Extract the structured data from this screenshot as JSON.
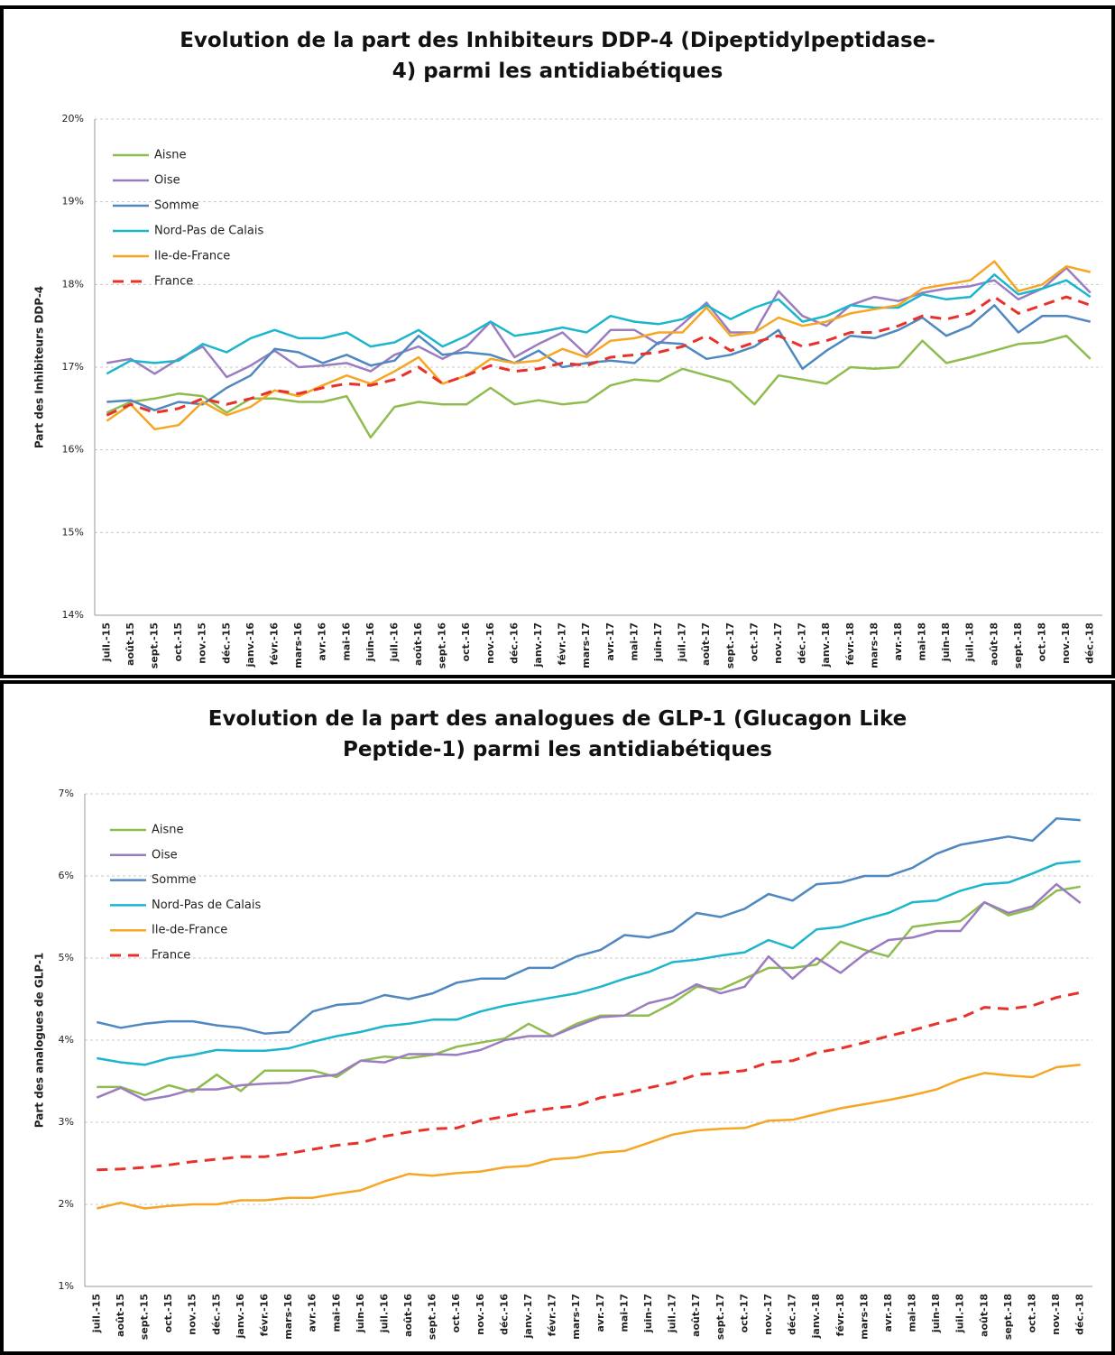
{
  "chart_data": [
    {
      "type": "line",
      "title": "Evolution de la part des Inhibiteurs DDP-4 (Dipeptidylpeptidase-4) parmi les antidiabétiques",
      "y_label": "Part des Inhibiteurs DDP-4",
      "categories": [
        "juil.-15",
        "août-15",
        "sept.-15",
        "oct.-15",
        "nov.-15",
        "déc.-15",
        "janv.-16",
        "févr.-16",
        "mars-16",
        "avr.-16",
        "mai-16",
        "juin-16",
        "juil.-16",
        "août-16",
        "sept.-16",
        "oct.-16",
        "nov.-16",
        "déc.-16",
        "janv.-17",
        "févr.-17",
        "mars-17",
        "avr.-17",
        "mai-17",
        "juin-17",
        "juil.-17",
        "août-17",
        "sept.-17",
        "oct.-17",
        "nov.-17",
        "déc.-17",
        "janv.-18",
        "févr.-18",
        "mars-18",
        "avr.-18",
        "mai-18",
        "juin-18",
        "juil.-18",
        "août-18",
        "sept.-18",
        "oct.-18",
        "nov.-18",
        "déc.-18"
      ],
      "ylim": [
        14,
        20
      ],
      "yticks": [
        {
          "value": 14,
          "label": "14%"
        },
        {
          "value": 15,
          "label": "15%"
        },
        {
          "value": 16,
          "label": "16%"
        },
        {
          "value": 17,
          "label": "17%"
        },
        {
          "value": 18,
          "label": "18%"
        },
        {
          "value": 19,
          "label": "19%"
        },
        {
          "value": 20,
          "label": "20%"
        }
      ],
      "grid": true,
      "legend": "upper left",
      "series": [
        {
          "name": "Aisne",
          "color": "#8fbc4e",
          "values": [
            16.45,
            16.58,
            16.62,
            16.68,
            16.65,
            16.45,
            16.62,
            16.62,
            16.58,
            16.58,
            16.65,
            16.15,
            16.52,
            16.58,
            16.55,
            16.55,
            16.75,
            16.55,
            16.6,
            16.55,
            16.58,
            16.78,
            16.85,
            16.83,
            16.98,
            16.9,
            16.82,
            16.55,
            16.9,
            16.85,
            16.8,
            17.0,
            16.98,
            17.0,
            17.32,
            17.05,
            17.12,
            17.2,
            17.28,
            17.3,
            17.38,
            17.1
          ]
        },
        {
          "name": "Oise",
          "color": "#9b7cc0",
          "values": [
            17.05,
            17.1,
            16.92,
            17.1,
            17.25,
            16.88,
            17.02,
            17.2,
            17.0,
            17.02,
            17.05,
            16.95,
            17.15,
            17.25,
            17.1,
            17.25,
            17.55,
            17.12,
            17.28,
            17.42,
            17.15,
            17.45,
            17.45,
            17.28,
            17.52,
            17.78,
            17.42,
            17.42,
            17.92,
            17.62,
            17.5,
            17.75,
            17.85,
            17.8,
            17.9,
            17.95,
            17.98,
            18.05,
            17.82,
            17.95,
            18.2,
            17.9
          ]
        },
        {
          "name": "Somme",
          "color": "#4f87c0",
          "values": [
            16.58,
            16.6,
            16.48,
            16.58,
            16.55,
            16.75,
            16.9,
            17.22,
            17.18,
            17.05,
            17.15,
            17.02,
            17.08,
            17.38,
            17.15,
            17.18,
            17.15,
            17.05,
            17.2,
            17.0,
            17.05,
            17.08,
            17.05,
            17.3,
            17.28,
            17.1,
            17.15,
            17.25,
            17.45,
            16.98,
            17.2,
            17.38,
            17.35,
            17.45,
            17.6,
            17.38,
            17.5,
            17.75,
            17.42,
            17.62,
            17.62,
            17.55
          ]
        },
        {
          "name": "Nord-Pas de Calais",
          "color": "#1bb6cc",
          "values": [
            16.92,
            17.08,
            17.05,
            17.08,
            17.28,
            17.18,
            17.35,
            17.45,
            17.35,
            17.35,
            17.42,
            17.25,
            17.3,
            17.45,
            17.25,
            17.38,
            17.55,
            17.38,
            17.42,
            17.48,
            17.42,
            17.62,
            17.55,
            17.52,
            17.58,
            17.75,
            17.58,
            17.72,
            17.82,
            17.55,
            17.62,
            17.75,
            17.72,
            17.72,
            17.88,
            17.82,
            17.85,
            18.12,
            17.88,
            17.95,
            18.05,
            17.85
          ]
        },
        {
          "name": "Ile-de-France",
          "color": "#f5a623",
          "values": [
            16.35,
            16.55,
            16.25,
            16.3,
            16.58,
            16.42,
            16.52,
            16.72,
            16.65,
            16.78,
            16.9,
            16.8,
            16.95,
            17.12,
            16.8,
            16.9,
            17.1,
            17.05,
            17.08,
            17.22,
            17.12,
            17.32,
            17.35,
            17.42,
            17.42,
            17.72,
            17.38,
            17.42,
            17.6,
            17.5,
            17.55,
            17.65,
            17.7,
            17.75,
            17.95,
            18.0,
            18.05,
            18.28,
            17.92,
            18.0,
            18.22,
            18.15
          ]
        },
        {
          "name": "France",
          "color": "#e8312a",
          "dashed": true,
          "values": [
            16.42,
            16.55,
            16.45,
            16.5,
            16.62,
            16.55,
            16.62,
            16.72,
            16.68,
            16.75,
            16.8,
            16.78,
            16.85,
            17.0,
            16.8,
            16.9,
            17.02,
            16.95,
            16.98,
            17.05,
            17.02,
            17.12,
            17.15,
            17.18,
            17.25,
            17.38,
            17.2,
            17.3,
            17.38,
            17.25,
            17.32,
            17.42,
            17.42,
            17.5,
            17.62,
            17.58,
            17.65,
            17.85,
            17.65,
            17.75,
            17.85,
            17.75
          ]
        }
      ]
    },
    {
      "type": "line",
      "title": "Evolution de la part des analogues de GLP-1 (Glucagon Like Peptide-1) parmi les antidiabétiques",
      "y_label": "Part des analogues de GLP-1",
      "categories": [
        "juil.-15",
        "août-15",
        "sept.-15",
        "oct.-15",
        "nov.-15",
        "déc.-15",
        "janv.-16",
        "févr.-16",
        "mars-16",
        "avr.-16",
        "mai-16",
        "juin-16",
        "juil.-16",
        "août-16",
        "sept.-16",
        "oct.-16",
        "nov.-16",
        "déc.-16",
        "janv.-17",
        "févr.-17",
        "mars-17",
        "avr.-17",
        "mai-17",
        "juin-17",
        "juil.-17",
        "août-17",
        "sept.-17",
        "oct.-17",
        "nov.-17",
        "déc.-17",
        "janv.-18",
        "févr.-18",
        "mars-18",
        "avr.-18",
        "mai-18",
        "juin-18",
        "juil.-18",
        "août-18",
        "sept.-18",
        "oct.-18",
        "nov.-18",
        "déc.-18"
      ],
      "ylim": [
        1,
        7
      ],
      "yticks": [
        {
          "value": 1,
          "label": "1%"
        },
        {
          "value": 2,
          "label": "2%"
        },
        {
          "value": 3,
          "label": "3%"
        },
        {
          "value": 4,
          "label": "4%"
        },
        {
          "value": 5,
          "label": "5%"
        },
        {
          "value": 6,
          "label": "6%"
        },
        {
          "value": 7,
          "label": "7%"
        }
      ],
      "grid": true,
      "legend": "upper left",
      "series": [
        {
          "name": "Aisne",
          "color": "#8fbc4e",
          "values": [
            3.43,
            3.43,
            3.33,
            3.45,
            3.37,
            3.58,
            3.38,
            3.63,
            3.63,
            3.63,
            3.55,
            3.75,
            3.8,
            3.78,
            3.82,
            3.92,
            3.97,
            4.02,
            4.2,
            4.05,
            4.2,
            4.3,
            4.3,
            4.3,
            4.45,
            4.65,
            4.62,
            4.75,
            4.88,
            4.88,
            4.92,
            5.2,
            5.1,
            5.02,
            5.38,
            5.42,
            5.45,
            5.68,
            5.52,
            5.6,
            5.82,
            5.87
          ]
        },
        {
          "name": "Oise",
          "color": "#9b7cc0",
          "values": [
            3.3,
            3.42,
            3.27,
            3.32,
            3.4,
            3.4,
            3.45,
            3.47,
            3.48,
            3.55,
            3.58,
            3.75,
            3.73,
            3.83,
            3.83,
            3.82,
            3.88,
            4.0,
            4.05,
            4.05,
            4.17,
            4.28,
            4.3,
            4.45,
            4.52,
            4.68,
            4.57,
            4.65,
            5.02,
            4.75,
            5.0,
            4.82,
            5.05,
            5.22,
            5.25,
            5.33,
            5.33,
            5.68,
            5.55,
            5.63,
            5.9,
            5.67
          ]
        },
        {
          "name": "Somme",
          "color": "#4f87c0",
          "values": [
            4.22,
            4.15,
            4.2,
            4.23,
            4.23,
            4.18,
            4.15,
            4.08,
            4.1,
            4.35,
            4.43,
            4.45,
            4.55,
            4.5,
            4.57,
            4.7,
            4.75,
            4.75,
            4.88,
            4.88,
            5.02,
            5.1,
            5.28,
            5.25,
            5.33,
            5.55,
            5.5,
            5.6,
            5.78,
            5.7,
            5.9,
            5.92,
            6.0,
            6.0,
            6.1,
            6.27,
            6.38,
            6.43,
            6.48,
            6.43,
            6.7,
            6.68
          ]
        },
        {
          "name": "Nord-Pas de Calais",
          "color": "#1bb6cc",
          "values": [
            3.78,
            3.73,
            3.7,
            3.78,
            3.82,
            3.88,
            3.87,
            3.87,
            3.9,
            3.98,
            4.05,
            4.1,
            4.17,
            4.2,
            4.25,
            4.25,
            4.35,
            4.42,
            4.47,
            4.52,
            4.57,
            4.65,
            4.75,
            4.83,
            4.95,
            4.98,
            5.03,
            5.07,
            5.22,
            5.12,
            5.35,
            5.38,
            5.47,
            5.55,
            5.68,
            5.7,
            5.82,
            5.9,
            5.92,
            6.03,
            6.15,
            6.18
          ]
        },
        {
          "name": "Ile-de-France",
          "color": "#f5a623",
          "values": [
            1.95,
            2.02,
            1.95,
            1.98,
            2.0,
            2.0,
            2.05,
            2.05,
            2.08,
            2.08,
            2.13,
            2.17,
            2.28,
            2.37,
            2.35,
            2.38,
            2.4,
            2.45,
            2.47,
            2.55,
            2.57,
            2.63,
            2.65,
            2.75,
            2.85,
            2.9,
            2.92,
            2.93,
            3.02,
            3.03,
            3.1,
            3.17,
            3.22,
            3.27,
            3.33,
            3.4,
            3.52,
            3.6,
            3.57,
            3.55,
            3.67,
            3.7
          ]
        },
        {
          "name": "France",
          "color": "#e8312a",
          "dashed": true,
          "values": [
            2.42,
            2.43,
            2.45,
            2.48,
            2.52,
            2.55,
            2.58,
            2.58,
            2.62,
            2.67,
            2.72,
            2.75,
            2.83,
            2.88,
            2.92,
            2.93,
            3.02,
            3.07,
            3.13,
            3.17,
            3.2,
            3.3,
            3.35,
            3.42,
            3.48,
            3.58,
            3.6,
            3.63,
            3.73,
            3.75,
            3.85,
            3.9,
            3.97,
            4.05,
            4.12,
            4.2,
            4.27,
            4.4,
            4.38,
            4.42,
            4.52,
            4.58
          ]
        }
      ]
    }
  ]
}
